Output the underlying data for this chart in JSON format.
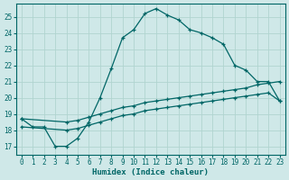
{
  "xlabel": "Humidex (Indice chaleur)",
  "bg_color": "#cfe8e8",
  "line_color": "#006666",
  "grid_color": "#b0d4d0",
  "xlim": [
    -0.5,
    23.5
  ],
  "ylim": [
    16.5,
    25.8
  ],
  "yticks": [
    17,
    18,
    19,
    20,
    21,
    22,
    23,
    24,
    25
  ],
  "xticks": [
    0,
    1,
    2,
    3,
    4,
    5,
    6,
    7,
    8,
    9,
    10,
    11,
    12,
    13,
    14,
    15,
    16,
    17,
    18,
    19,
    20,
    21,
    22,
    23
  ],
  "curve1_x": [
    0,
    1,
    2,
    3,
    4,
    5,
    6,
    7,
    8,
    9,
    10,
    11,
    12,
    13,
    14,
    15,
    16,
    17,
    18,
    19,
    20,
    21,
    22,
    23
  ],
  "curve1_y": [
    18.7,
    18.2,
    18.2,
    17.0,
    17.0,
    17.5,
    18.5,
    20.0,
    21.8,
    23.7,
    24.2,
    25.2,
    25.5,
    25.1,
    24.8,
    24.2,
    24.0,
    23.7,
    23.3,
    22.0,
    21.7,
    21.0,
    21.0,
    19.8
  ],
  "curve2_x": [
    0,
    4,
    5,
    6,
    7,
    8,
    9,
    10,
    11,
    12,
    13,
    14,
    15,
    16,
    17,
    18,
    19,
    20,
    21,
    22,
    23
  ],
  "curve2_y": [
    18.7,
    18.5,
    18.6,
    18.8,
    19.0,
    19.2,
    19.4,
    19.5,
    19.7,
    19.8,
    19.9,
    20.0,
    20.1,
    20.2,
    20.3,
    20.4,
    20.5,
    20.6,
    20.8,
    20.9,
    21.0
  ],
  "curve3_x": [
    0,
    4,
    5,
    6,
    7,
    8,
    9,
    10,
    11,
    12,
    13,
    14,
    15,
    16,
    17,
    18,
    19,
    20,
    21,
    22,
    23
  ],
  "curve3_y": [
    18.2,
    18.0,
    18.1,
    18.3,
    18.5,
    18.7,
    18.9,
    19.0,
    19.2,
    19.3,
    19.4,
    19.5,
    19.6,
    19.7,
    19.8,
    19.9,
    20.0,
    20.1,
    20.2,
    20.3,
    19.8
  ]
}
